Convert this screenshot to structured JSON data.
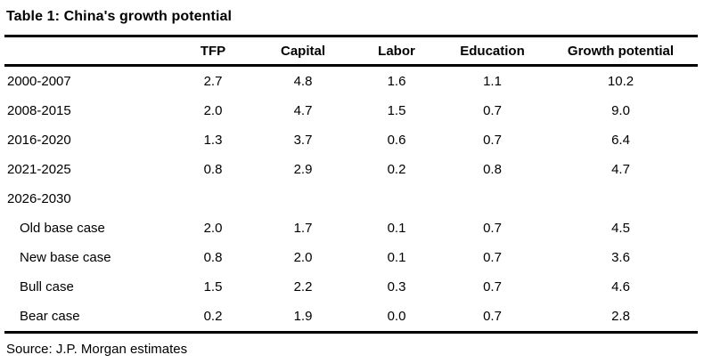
{
  "chart_data": {
    "type": "table",
    "title": "Table 1: China's growth potential",
    "columns": [
      "TFP",
      "Capital",
      "Labor",
      "Education",
      "Growth potential"
    ],
    "rows": [
      {
        "label": "2000-2007",
        "indent": false,
        "values": [
          "2.7",
          "4.8",
          "1.6",
          "1.1",
          "10.2"
        ]
      },
      {
        "label": "2008-2015",
        "indent": false,
        "values": [
          "2.0",
          "4.7",
          "1.5",
          "0.7",
          "9.0"
        ]
      },
      {
        "label": "2016-2020",
        "indent": false,
        "values": [
          "1.3",
          "3.7",
          "0.6",
          "0.7",
          "6.4"
        ]
      },
      {
        "label": "2021-2025",
        "indent": false,
        "values": [
          "0.8",
          "2.9",
          "0.2",
          "0.8",
          "4.7"
        ]
      },
      {
        "label": "2026-2030",
        "indent": false,
        "values": [
          "",
          "",
          "",
          "",
          ""
        ]
      },
      {
        "label": "Old base case",
        "indent": true,
        "values": [
          "2.0",
          "1.7",
          "0.1",
          "0.7",
          "4.5"
        ]
      },
      {
        "label": "New base case",
        "indent": true,
        "values": [
          "0.8",
          "2.0",
          "0.1",
          "0.7",
          "3.6"
        ]
      },
      {
        "label": "Bull case",
        "indent": true,
        "values": [
          "1.5",
          "2.2",
          "0.3",
          "0.7",
          "4.6"
        ]
      },
      {
        "label": "Bear case",
        "indent": true,
        "values": [
          "0.2",
          "1.9",
          "0.0",
          "0.7",
          "2.8"
        ]
      }
    ],
    "source": "Source: J.P. Morgan estimates",
    "colors": {
      "text": "#000000",
      "background": "#ffffff",
      "rule": "#000000"
    }
  }
}
